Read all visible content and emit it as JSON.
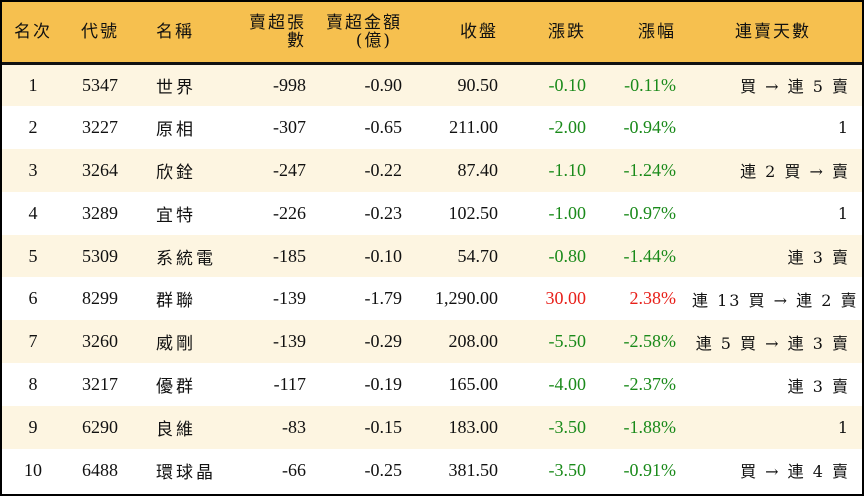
{
  "colors": {
    "header_bg": "#F6C04F",
    "row_alt_bg": "#FDF5E1",
    "row_bg": "#FFFFFF",
    "down": "#1A8A1A",
    "up": "#E8201A",
    "border": "#000000"
  },
  "headers": {
    "rank": "名次",
    "code": "代號",
    "name": "名稱",
    "net_sell_lots": "賣超張數",
    "net_sell_amount_line1": "賣超金額",
    "net_sell_amount_line2": "(億)",
    "close": "收盤",
    "change": "漲跌",
    "change_pct": "漲幅",
    "streak": "連賣天數"
  },
  "rows": [
    {
      "rank": "1",
      "code": "5347",
      "name": "世界",
      "lots": "-998",
      "amount": "-0.90",
      "close": "90.50",
      "change": "-0.10",
      "pct": "-0.11%",
      "dir": "down",
      "streak": "買 → 連 5 賣"
    },
    {
      "rank": "2",
      "code": "3227",
      "name": "原相",
      "lots": "-307",
      "amount": "-0.65",
      "close": "211.00",
      "change": "-2.00",
      "pct": "-0.94%",
      "dir": "down",
      "streak": "1"
    },
    {
      "rank": "3",
      "code": "3264",
      "name": "欣銓",
      "lots": "-247",
      "amount": "-0.22",
      "close": "87.40",
      "change": "-1.10",
      "pct": "-1.24%",
      "dir": "down",
      "streak": "連 2 買 → 賣"
    },
    {
      "rank": "4",
      "code": "3289",
      "name": "宜特",
      "lots": "-226",
      "amount": "-0.23",
      "close": "102.50",
      "change": "-1.00",
      "pct": "-0.97%",
      "dir": "down",
      "streak": "1"
    },
    {
      "rank": "5",
      "code": "5309",
      "name": "系統電",
      "lots": "-185",
      "amount": "-0.10",
      "close": "54.70",
      "change": "-0.80",
      "pct": "-1.44%",
      "dir": "down",
      "streak": "連 3 賣"
    },
    {
      "rank": "6",
      "code": "8299",
      "name": "群聯",
      "lots": "-139",
      "amount": "-1.79",
      "close": "1,290.00",
      "change": "30.00",
      "pct": "2.38%",
      "dir": "up",
      "streak": "連 13 買 → 連 2 賣"
    },
    {
      "rank": "7",
      "code": "3260",
      "name": "威剛",
      "lots": "-139",
      "amount": "-0.29",
      "close": "208.00",
      "change": "-5.50",
      "pct": "-2.58%",
      "dir": "down",
      "streak": "連 5 買 → 連 3 賣"
    },
    {
      "rank": "8",
      "code": "3217",
      "name": "優群",
      "lots": "-117",
      "amount": "-0.19",
      "close": "165.00",
      "change": "-4.00",
      "pct": "-2.37%",
      "dir": "down",
      "streak": "連 3 賣"
    },
    {
      "rank": "9",
      "code": "6290",
      "name": "良維",
      "lots": "-83",
      "amount": "-0.15",
      "close": "183.00",
      "change": "-3.50",
      "pct": "-1.88%",
      "dir": "down",
      "streak": "1"
    },
    {
      "rank": "10",
      "code": "6488",
      "name": "環球晶",
      "lots": "-66",
      "amount": "-0.25",
      "close": "381.50",
      "change": "-3.50",
      "pct": "-0.91%",
      "dir": "down",
      "streak": "買 → 連 4 賣"
    }
  ]
}
